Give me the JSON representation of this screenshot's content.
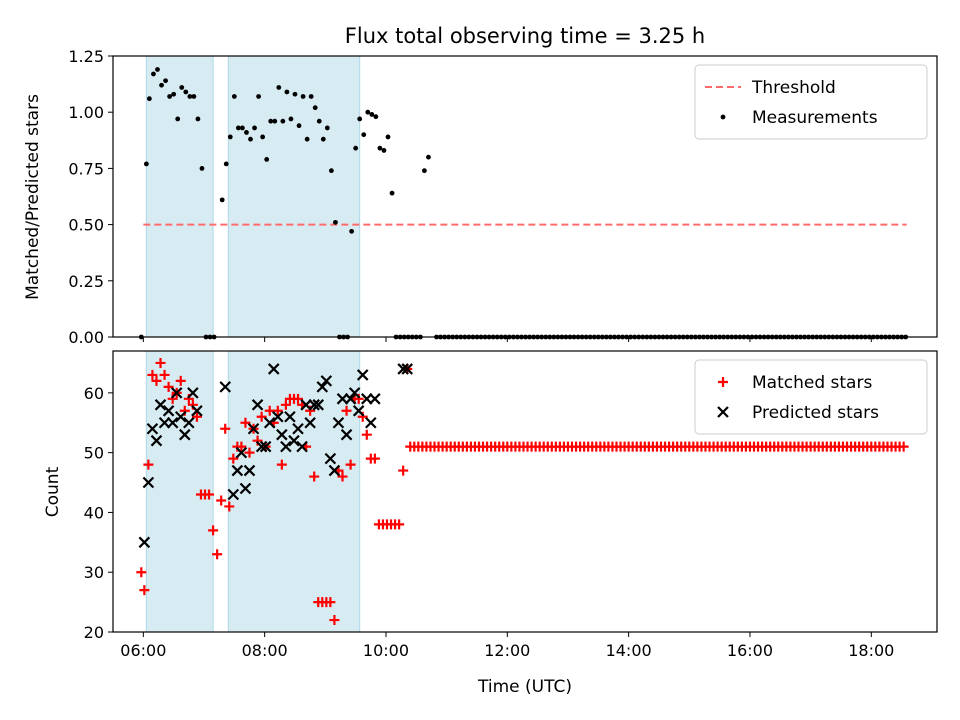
{
  "chart_data": {
    "title": "Flux total observing time = 3.25 h",
    "xlabel": "Time (UTC)",
    "x_unit": "hours UTC",
    "xlim": [
      "05:30",
      "19:05"
    ],
    "xticks": [
      "06:00",
      "08:00",
      "10:00",
      "12:00",
      "14:00",
      "16:00",
      "18:00"
    ],
    "shaded_intervals": [
      [
        "06:03",
        "07:09"
      ],
      [
        "07:24",
        "09:34"
      ]
    ],
    "shade_color": "#add8e6",
    "panels": [
      {
        "type": "scatter",
        "ylabel": "Matched/Predicted stars",
        "ylim": [
          0,
          1.25
        ],
        "yticks": [
          "0.00",
          "0.25",
          "0.50",
          "0.75",
          "1.00",
          "1.25"
        ],
        "legend_position": "upper right",
        "threshold": {
          "name": "Threshold",
          "value": 0.5,
          "x_range": [
            "06:00",
            "18:35"
          ],
          "color": "#ff6b6b",
          "style": "dashed"
        },
        "series": [
          {
            "name": "Measurements",
            "color": "#000000",
            "marker": "dot",
            "points": [
              [
                "05:58",
                0.0
              ],
              [
                "06:03",
                0.77
              ],
              [
                "06:06",
                1.06
              ],
              [
                "06:10",
                1.17
              ],
              [
                "06:14",
                1.19
              ],
              [
                "06:18",
                1.12
              ],
              [
                "06:22",
                1.14
              ],
              [
                "06:26",
                1.07
              ],
              [
                "06:30",
                1.08
              ],
              [
                "06:34",
                0.97
              ],
              [
                "06:38",
                1.11
              ],
              [
                "06:42",
                1.09
              ],
              [
                "06:46",
                1.07
              ],
              [
                "06:50",
                1.07
              ],
              [
                "06:54",
                0.97
              ],
              [
                "06:58",
                0.75
              ],
              [
                "07:02",
                0.0
              ],
              [
                "07:06",
                0.0
              ],
              [
                "07:10",
                0.0
              ],
              [
                "07:18",
                0.61
              ],
              [
                "07:22",
                0.77
              ],
              [
                "07:26",
                0.89
              ],
              [
                "07:30",
                1.07
              ],
              [
                "07:34",
                0.93
              ],
              [
                "07:38",
                0.93
              ],
              [
                "07:42",
                0.91
              ],
              [
                "07:46",
                0.88
              ],
              [
                "07:50",
                0.93
              ],
              [
                "07:54",
                1.07
              ],
              [
                "07:58",
                0.89
              ],
              [
                "08:02",
                0.79
              ],
              [
                "08:06",
                0.96
              ],
              [
                "08:10",
                0.96
              ],
              [
                "08:14",
                1.11
              ],
              [
                "08:18",
                0.96
              ],
              [
                "08:22",
                1.09
              ],
              [
                "08:26",
                0.97
              ],
              [
                "08:30",
                1.08
              ],
              [
                "08:34",
                0.94
              ],
              [
                "08:38",
                1.07
              ],
              [
                "08:42",
                0.88
              ],
              [
                "08:46",
                1.07
              ],
              [
                "08:50",
                1.02
              ],
              [
                "08:54",
                0.96
              ],
              [
                "08:58",
                0.88
              ],
              [
                "09:02",
                0.93
              ],
              [
                "09:06",
                0.74
              ],
              [
                "09:10",
                0.51
              ],
              [
                "09:14",
                0.0
              ],
              [
                "09:18",
                0.0
              ],
              [
                "09:22",
                0.0
              ],
              [
                "09:26",
                0.47
              ],
              [
                "09:30",
                0.84
              ],
              [
                "09:34",
                0.97
              ],
              [
                "09:38",
                0.9
              ],
              [
                "09:42",
                1.0
              ],
              [
                "09:46",
                0.99
              ],
              [
                "09:50",
                0.98
              ],
              [
                "09:54",
                0.84
              ],
              [
                "09:58",
                0.83
              ],
              [
                "10:02",
                0.89
              ],
              [
                "10:06",
                0.64
              ],
              [
                "10:10",
                0.0
              ],
              [
                "10:14",
                0.0
              ],
              [
                "10:18",
                0.0
              ],
              [
                "10:22",
                0.0
              ],
              [
                "10:26",
                0.0
              ],
              [
                "10:30",
                0.0
              ],
              [
                "10:34",
                0.0
              ],
              [
                "10:38",
                0.74
              ],
              [
                "10:42",
                0.8
              ]
            ],
            "zero_run": {
              "start": "10:50",
              "end": "18:35",
              "step_minutes": 4,
              "value": 0.0
            }
          }
        ]
      },
      {
        "type": "scatter",
        "ylabel": "Count",
        "ylim": [
          20,
          67
        ],
        "yticks": [
          "20",
          "30",
          "40",
          "50",
          "60"
        ],
        "legend_position": "upper right",
        "series": [
          {
            "name": "Matched stars",
            "color": "#ff0000",
            "marker": "plus",
            "points": [
              [
                "05:58",
                30
              ],
              [
                "06:01",
                27
              ],
              [
                "06:05",
                48
              ],
              [
                "06:09",
                63
              ],
              [
                "06:13",
                62
              ],
              [
                "06:17",
                65
              ],
              [
                "06:21",
                63
              ],
              [
                "06:25",
                61
              ],
              [
                "06:29",
                59
              ],
              [
                "06:33",
                60
              ],
              [
                "06:37",
                62
              ],
              [
                "06:41",
                57
              ],
              [
                "06:45",
                59
              ],
              [
                "06:49",
                58
              ],
              [
                "06:53",
                56
              ],
              [
                "06:57",
                43
              ],
              [
                "07:01",
                43
              ],
              [
                "07:05",
                43
              ],
              [
                "07:09",
                37
              ],
              [
                "07:13",
                33
              ],
              [
                "07:17",
                42
              ],
              [
                "07:21",
                54
              ],
              [
                "07:25",
                41
              ],
              [
                "07:29",
                49
              ],
              [
                "07:33",
                51
              ],
              [
                "07:37",
                51
              ],
              [
                "07:41",
                55
              ],
              [
                "07:45",
                50
              ],
              [
                "07:49",
                54
              ],
              [
                "07:53",
                52
              ],
              [
                "07:57",
                56
              ],
              [
                "08:01",
                51
              ],
              [
                "08:05",
                57
              ],
              [
                "08:09",
                55
              ],
              [
                "08:13",
                57
              ],
              [
                "08:17",
                48
              ],
              [
                "08:21",
                58
              ],
              [
                "08:25",
                59
              ],
              [
                "08:29",
                59
              ],
              [
                "08:33",
                59
              ],
              [
                "08:37",
                58
              ],
              [
                "08:41",
                51
              ],
              [
                "08:45",
                57
              ],
              [
                "08:49",
                46
              ],
              [
                "08:53",
                25
              ],
              [
                "08:57",
                25
              ],
              [
                "09:01",
                25
              ],
              [
                "09:05",
                25
              ],
              [
                "09:09",
                22
              ],
              [
                "09:13",
                47
              ],
              [
                "09:17",
                46
              ],
              [
                "09:21",
                57
              ],
              [
                "09:25",
                48
              ],
              [
                "09:29",
                59
              ],
              [
                "09:33",
                59
              ],
              [
                "09:37",
                56
              ],
              [
                "09:41",
                53
              ],
              [
                "09:45",
                49
              ],
              [
                "09:49",
                49
              ],
              [
                "09:53",
                38
              ],
              [
                "09:57",
                38
              ],
              [
                "10:01",
                38
              ],
              [
                "10:05",
                38
              ],
              [
                "10:09",
                38
              ],
              [
                "10:13",
                38
              ],
              [
                "10:17",
                47
              ],
              [
                "10:21",
                64
              ]
            ],
            "constant_run": {
              "start": "10:24",
              "end": "18:35",
              "step_minutes": 4,
              "value": 51
            }
          },
          {
            "name": "Predicted stars",
            "color": "#000000",
            "marker": "x",
            "points": [
              [
                "06:01",
                35
              ],
              [
                "06:05",
                45
              ],
              [
                "06:09",
                54
              ],
              [
                "06:13",
                52
              ],
              [
                "06:17",
                58
              ],
              [
                "06:21",
                55
              ],
              [
                "06:25",
                57
              ],
              [
                "06:29",
                55
              ],
              [
                "06:33",
                60
              ],
              [
                "06:37",
                56
              ],
              [
                "06:41",
                53
              ],
              [
                "06:45",
                55
              ],
              [
                "06:49",
                60
              ],
              [
                "06:53",
                57
              ],
              [
                "07:21",
                61
              ],
              [
                "07:29",
                43
              ],
              [
                "07:33",
                47
              ],
              [
                "07:37",
                50
              ],
              [
                "07:41",
                44
              ],
              [
                "07:45",
                47
              ],
              [
                "07:49",
                54
              ],
              [
                "07:53",
                58
              ],
              [
                "07:57",
                51
              ],
              [
                "08:01",
                51
              ],
              [
                "08:05",
                55
              ],
              [
                "08:09",
                64
              ],
              [
                "08:13",
                56
              ],
              [
                "08:17",
                53
              ],
              [
                "08:21",
                51
              ],
              [
                "08:25",
                56
              ],
              [
                "08:29",
                52
              ],
              [
                "08:33",
                54
              ],
              [
                "08:37",
                51
              ],
              [
                "08:41",
                58
              ],
              [
                "08:45",
                55
              ],
              [
                "08:49",
                58
              ],
              [
                "08:53",
                58
              ],
              [
                "08:57",
                61
              ],
              [
                "09:01",
                62
              ],
              [
                "09:05",
                49
              ],
              [
                "09:09",
                47
              ],
              [
                "09:13",
                55
              ],
              [
                "09:17",
                59
              ],
              [
                "09:21",
                53
              ],
              [
                "09:25",
                59
              ],
              [
                "09:29",
                60
              ],
              [
                "09:33",
                57
              ],
              [
                "09:37",
                63
              ],
              [
                "09:41",
                59
              ],
              [
                "09:45",
                55
              ],
              [
                "09:49",
                59
              ],
              [
                "10:17",
                64
              ],
              [
                "10:21",
                64
              ]
            ]
          }
        ]
      }
    ]
  }
}
